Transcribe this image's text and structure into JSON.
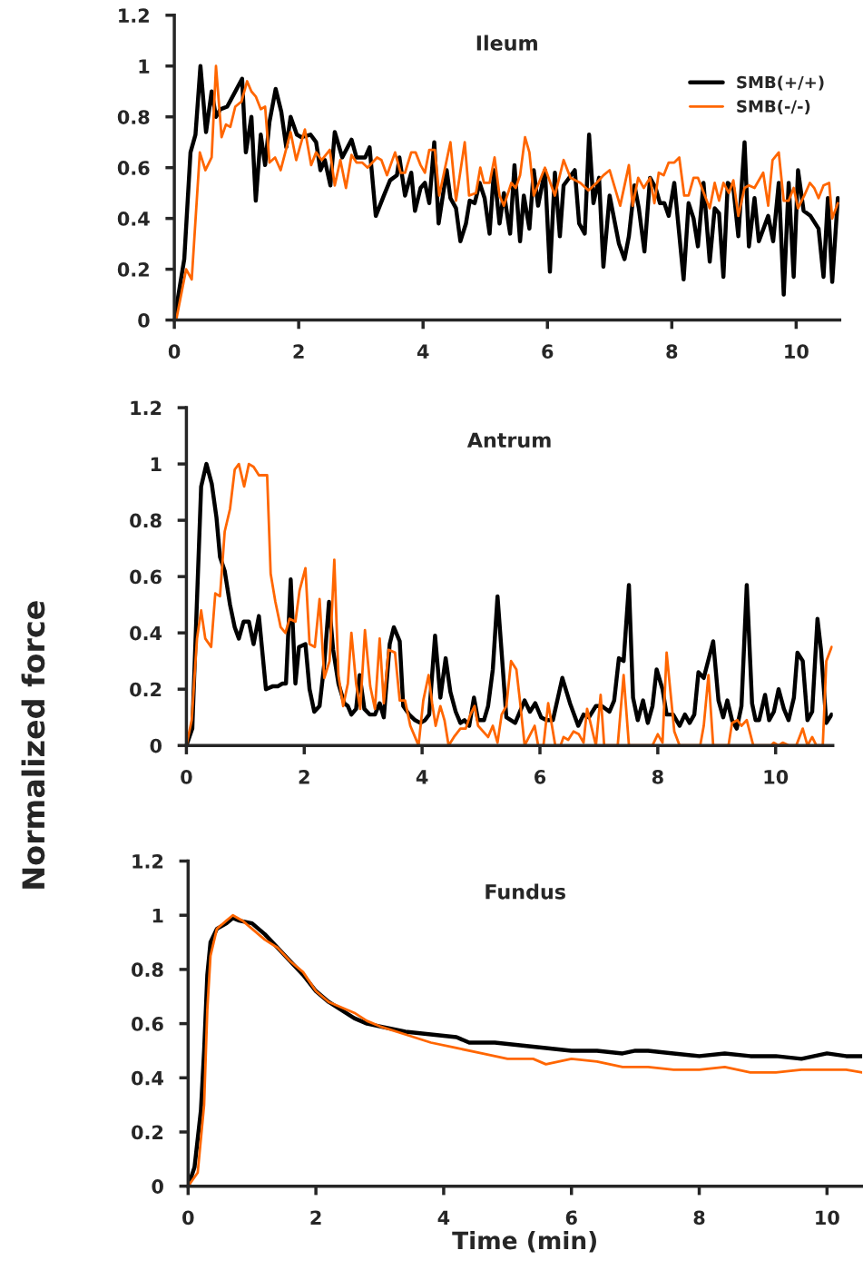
{
  "chart_data": [
    {
      "type": "line",
      "title": "Ileum",
      "xlim": [
        0,
        10.7
      ],
      "ylim": [
        0,
        1.2
      ],
      "xticks": [
        0,
        2,
        4,
        6,
        8,
        10
      ],
      "yticks": [
        0,
        0.2,
        0.4,
        0.6,
        0.8,
        1,
        1.2
      ],
      "legend": "top right",
      "series": [
        {
          "name": "SMB(+/+)",
          "color": "#000000",
          "x": [
            0,
            0.16,
            0.26,
            0.34,
            0.42,
            0.51,
            0.6,
            0.67,
            0.74,
            0.85,
            1.09,
            1.15,
            1.24,
            1.31,
            1.39,
            1.46,
            1.53,
            1.63,
            1.72,
            1.8,
            1.87,
            1.97,
            2.04,
            2.19,
            2.28,
            2.35,
            2.42,
            2.51,
            2.58,
            2.7,
            2.85,
            2.93,
            3.07,
            3.14,
            3.24,
            3.37,
            3.47,
            3.58,
            3.62,
            3.71,
            3.81,
            3.87,
            3.96,
            4.03,
            4.1,
            4.18,
            4.25,
            4.38,
            4.44,
            4.53,
            4.6,
            4.69,
            4.75,
            4.83,
            4.91,
            4.99,
            5.07,
            5.14,
            5.23,
            5.3,
            5.4,
            5.47,
            5.56,
            5.62,
            5.71,
            5.78,
            5.85,
            5.96,
            6.04,
            6.12,
            6.2,
            6.26,
            6.44,
            6.51,
            6.6,
            6.67,
            6.74,
            6.83,
            6.9,
            7.0,
            7.15,
            7.24,
            7.31,
            7.4,
            7.47,
            7.56,
            7.65,
            7.74,
            7.81,
            7.88,
            7.95,
            8.04,
            8.19,
            8.27,
            8.35,
            8.42,
            8.51,
            8.61,
            8.69,
            8.76,
            8.83,
            8.9,
            8.99,
            9.07,
            9.17,
            9.24,
            9.33,
            9.4,
            9.55,
            9.63,
            9.72,
            9.8,
            9.88,
            9.96,
            10.03,
            10.12,
            10.23,
            10.36,
            10.44,
            10.51,
            10.58,
            10.67
          ],
          "values": [
            0,
            0.24,
            0.66,
            0.73,
            1.0,
            0.74,
            0.9,
            0.8,
            0.83,
            0.84,
            0.95,
            0.66,
            0.8,
            0.47,
            0.73,
            0.61,
            0.78,
            0.91,
            0.82,
            0.68,
            0.8,
            0.73,
            0.72,
            0.73,
            0.7,
            0.59,
            0.63,
            0.53,
            0.74,
            0.64,
            0.71,
            0.64,
            0.64,
            0.68,
            0.41,
            0.49,
            0.55,
            0.57,
            0.64,
            0.49,
            0.58,
            0.43,
            0.52,
            0.54,
            0.46,
            0.7,
            0.38,
            0.59,
            0.48,
            0.44,
            0.31,
            0.38,
            0.47,
            0.46,
            0.54,
            0.48,
            0.34,
            0.59,
            0.38,
            0.5,
            0.34,
            0.61,
            0.31,
            0.49,
            0.36,
            0.59,
            0.45,
            0.59,
            0.19,
            0.58,
            0.33,
            0.53,
            0.59,
            0.38,
            0.34,
            0.73,
            0.46,
            0.56,
            0.21,
            0.49,
            0.3,
            0.24,
            0.33,
            0.53,
            0.44,
            0.27,
            0.56,
            0.52,
            0.46,
            0.46,
            0.41,
            0.54,
            0.16,
            0.46,
            0.4,
            0.29,
            0.54,
            0.23,
            0.44,
            0.42,
            0.17,
            0.54,
            0.52,
            0.33,
            0.7,
            0.29,
            0.48,
            0.31,
            0.41,
            0.31,
            0.54,
            0.1,
            0.54,
            0.17,
            0.59,
            0.43,
            0.41,
            0.36,
            0.17,
            0.48,
            0.15,
            0.48
          ]
        },
        {
          "name": "SMB(-/-)",
          "color": "#ff6600",
          "x": [
            0.03,
            0.19,
            0.28,
            0.41,
            0.5,
            0.6,
            0.67,
            0.76,
            0.83,
            0.9,
            0.98,
            1.08,
            1.17,
            1.24,
            1.31,
            1.39,
            1.46,
            1.53,
            1.62,
            1.71,
            1.87,
            1.96,
            2.1,
            2.2,
            2.28,
            2.37,
            2.5,
            2.58,
            2.67,
            2.76,
            2.85,
            2.93,
            3.02,
            3.11,
            3.26,
            3.33,
            3.42,
            3.55,
            3.64,
            3.71,
            3.81,
            3.88,
            3.96,
            4.03,
            4.1,
            4.19,
            4.26,
            4.44,
            4.53,
            4.67,
            4.74,
            4.85,
            4.92,
            4.98,
            5.07,
            5.15,
            5.23,
            5.3,
            5.42,
            5.49,
            5.56,
            5.64,
            5.71,
            5.78,
            5.96,
            6.12,
            6.26,
            6.37,
            6.53,
            6.66,
            6.79,
            6.9,
            7.0,
            7.17,
            7.31,
            7.37,
            7.46,
            7.55,
            7.65,
            7.72,
            7.79,
            7.87,
            7.95,
            8.04,
            8.12,
            8.2,
            8.27,
            8.35,
            8.42,
            8.61,
            8.69,
            8.76,
            8.83,
            8.92,
            8.99,
            9.07,
            9.17,
            9.24,
            9.33,
            9.47,
            9.55,
            9.62,
            9.72,
            9.8,
            9.88,
            9.96,
            10.03,
            10.13,
            10.22,
            10.29,
            10.36,
            10.44,
            10.53,
            10.58,
            10.67
          ],
          "values": [
            0,
            0.2,
            0.16,
            0.66,
            0.59,
            0.64,
            1.0,
            0.72,
            0.77,
            0.76,
            0.84,
            0.86,
            0.94,
            0.9,
            0.88,
            0.83,
            0.84,
            0.62,
            0.64,
            0.59,
            0.74,
            0.63,
            0.75,
            0.61,
            0.66,
            0.63,
            0.67,
            0.53,
            0.63,
            0.52,
            0.65,
            0.62,
            0.62,
            0.6,
            0.64,
            0.63,
            0.57,
            0.66,
            0.58,
            0.58,
            0.66,
            0.66,
            0.61,
            0.58,
            0.67,
            0.67,
            0.49,
            0.7,
            0.47,
            0.7,
            0.49,
            0.5,
            0.6,
            0.54,
            0.54,
            0.64,
            0.49,
            0.45,
            0.54,
            0.52,
            0.57,
            0.72,
            0.66,
            0.49,
            0.6,
            0.49,
            0.63,
            0.56,
            0.54,
            0.51,
            0.54,
            0.57,
            0.59,
            0.45,
            0.61,
            0.45,
            0.56,
            0.52,
            0.56,
            0.46,
            0.58,
            0.57,
            0.62,
            0.62,
            0.64,
            0.49,
            0.49,
            0.56,
            0.56,
            0.44,
            0.54,
            0.47,
            0.54,
            0.5,
            0.55,
            0.41,
            0.52,
            0.53,
            0.52,
            0.58,
            0.45,
            0.63,
            0.66,
            0.47,
            0.47,
            0.52,
            0.44,
            0.49,
            0.54,
            0.52,
            0.48,
            0.53,
            0.54,
            0.4,
            0.46
          ]
        }
      ]
    },
    {
      "type": "line",
      "title": "Antrum",
      "ylabel": "Normalized force",
      "xlim": [
        0,
        10.97
      ],
      "ylim": [
        0,
        1.2
      ],
      "xticks": [
        0,
        2,
        4,
        6,
        8,
        10
      ],
      "yticks": [
        0,
        0.2,
        0.4,
        0.6,
        0.8,
        1,
        1.2
      ],
      "series": [
        {
          "color": "#000000",
          "x": [
            0,
            0.1,
            0.25,
            0.34,
            0.43,
            0.51,
            0.57,
            0.65,
            0.74,
            0.82,
            0.89,
            0.97,
            1.06,
            1.14,
            1.23,
            1.35,
            1.46,
            1.55,
            1.63,
            1.69,
            1.77,
            1.85,
            1.91,
            2.02,
            2.09,
            2.17,
            2.26,
            2.34,
            2.42,
            2.49,
            2.58,
            2.68,
            2.74,
            2.8,
            2.88,
            2.94,
            3.02,
            3.11,
            3.2,
            3.28,
            3.35,
            3.45,
            3.52,
            3.62,
            3.68,
            3.78,
            3.88,
            3.97,
            4.05,
            4.12,
            4.22,
            4.31,
            4.4,
            4.48,
            4.57,
            4.65,
            4.72,
            4.8,
            4.88,
            4.95,
            5.05,
            5.12,
            5.2,
            5.28,
            5.35,
            5.43,
            5.58,
            5.74,
            5.83,
            5.92,
            6.02,
            6.11,
            6.22,
            6.38,
            6.51,
            6.65,
            6.74,
            6.83,
            6.95,
            7.05,
            7.18,
            7.26,
            7.34,
            7.42,
            7.51,
            7.58,
            7.66,
            7.75,
            7.83,
            7.91,
            7.98,
            8.08,
            8.15,
            8.26,
            8.37,
            8.46,
            8.54,
            8.62,
            8.69,
            8.78,
            8.94,
            9.03,
            9.11,
            9.18,
            9.26,
            9.34,
            9.42,
            9.51,
            9.6,
            9.66,
            9.72,
            9.82,
            9.89,
            9.97,
            10.05,
            10.14,
            10.22,
            10.31,
            10.37,
            10.46,
            10.54,
            10.62,
            10.71,
            10.77,
            10.86,
            10.95
          ],
          "values": [
            0,
            0.06,
            0.92,
            1.0,
            0.93,
            0.81,
            0.67,
            0.62,
            0.5,
            0.42,
            0.38,
            0.44,
            0.44,
            0.36,
            0.46,
            0.2,
            0.21,
            0.21,
            0.22,
            0.22,
            0.59,
            0.22,
            0.35,
            0.36,
            0.2,
            0.12,
            0.14,
            0.29,
            0.51,
            0.34,
            0.22,
            0.15,
            0.14,
            0.11,
            0.13,
            0.25,
            0.13,
            0.11,
            0.11,
            0.15,
            0.1,
            0.36,
            0.42,
            0.37,
            0.14,
            0.11,
            0.09,
            0.08,
            0.09,
            0.11,
            0.39,
            0.17,
            0.31,
            0.19,
            0.12,
            0.08,
            0.09,
            0.07,
            0.17,
            0.09,
            0.09,
            0.14,
            0.27,
            0.53,
            0.33,
            0.1,
            0.08,
            0.16,
            0.12,
            0.15,
            0.1,
            0.09,
            0.09,
            0.24,
            0.15,
            0.07,
            0.11,
            0.1,
            0.14,
            0.14,
            0.12,
            0.16,
            0.31,
            0.3,
            0.57,
            0.17,
            0.09,
            0.16,
            0.08,
            0.14,
            0.27,
            0.2,
            0.11,
            0.11,
            0.07,
            0.11,
            0.08,
            0.11,
            0.26,
            0.24,
            0.37,
            0.16,
            0.1,
            0.16,
            0.09,
            0.06,
            0.14,
            0.57,
            0.15,
            0.09,
            0.09,
            0.18,
            0.09,
            0.12,
            0.2,
            0.13,
            0.09,
            0.17,
            0.33,
            0.3,
            0.09,
            0.12,
            0.45,
            0.34,
            0.08,
            0.11
          ]
        },
        {
          "color": "#ff6600",
          "x": [
            0,
            0.09,
            0.18,
            0.25,
            0.32,
            0.42,
            0.49,
            0.57,
            0.65,
            0.74,
            0.82,
            0.89,
            0.98,
            1.06,
            1.14,
            1.23,
            1.37,
            1.43,
            1.51,
            1.6,
            1.68,
            1.75,
            1.85,
            1.92,
            2.02,
            2.09,
            2.18,
            2.26,
            2.34,
            2.43,
            2.51,
            2.58,
            2.66,
            2.74,
            2.8,
            2.88,
            2.95,
            3.03,
            3.12,
            3.2,
            3.28,
            3.35,
            3.43,
            3.54,
            3.62,
            3.71,
            3.8,
            3.88,
            3.94,
            4.02,
            4.11,
            4.17,
            4.23,
            4.31,
            4.38,
            4.45,
            4.54,
            4.65,
            4.74,
            4.82,
            4.89,
            4.95,
            5.12,
            5.2,
            5.28,
            5.35,
            5.43,
            5.51,
            5.6,
            5.66,
            5.74,
            5.91,
            5.97,
            6.06,
            6.14,
            6.26,
            6.35,
            6.4,
            6.48,
            6.57,
            6.66,
            6.74,
            6.8,
            6.95,
            7.03,
            7.09,
            7.32,
            7.42,
            7.51,
            7.91,
            8.0,
            8.08,
            8.15,
            8.28,
            8.37,
            8.72,
            8.78,
            8.86,
            8.94,
            9.2,
            9.26,
            9.35,
            9.42,
            9.51,
            9.62,
            9.92,
            9.97,
            10.05,
            10.12,
            10.23,
            10.35,
            10.46,
            10.54,
            10.62,
            10.69,
            10.8,
            10.86,
            10.95
          ],
          "values": [
            0,
            0.09,
            0.38,
            0.48,
            0.38,
            0.35,
            0.54,
            0.53,
            0.76,
            0.84,
            0.98,
            1.0,
            0.92,
            1.0,
            0.99,
            0.96,
            0.96,
            0.61,
            0.51,
            0.42,
            0.4,
            0.45,
            0.44,
            0.55,
            0.63,
            0.36,
            0.35,
            0.52,
            0.24,
            0.3,
            0.66,
            0.25,
            0.14,
            0.22,
            0.4,
            0.22,
            0.13,
            0.41,
            0.21,
            0.13,
            0.38,
            0.15,
            0.34,
            0.33,
            0.16,
            0.16,
            0.07,
            0.03,
            0,
            0.16,
            0.25,
            0.15,
            0.07,
            0.14,
            0.09,
            0,
            0.03,
            0.06,
            0.06,
            0.11,
            0.14,
            0.07,
            0.03,
            0.07,
            0.01,
            0.11,
            0.14,
            0.3,
            0.27,
            0.16,
            0,
            0.07,
            0,
            0,
            0.15,
            0,
            0,
            0.03,
            0.02,
            0.05,
            0.04,
            0.01,
            0.13,
            0,
            0.18,
            0,
            0,
            0.25,
            0,
            0,
            0.04,
            0.01,
            0.33,
            0.05,
            0,
            0,
            0.07,
            0.25,
            0,
            0,
            0.08,
            0.09,
            0.07,
            0.09,
            0,
            0,
            0.01,
            0,
            0.01,
            0,
            0,
            0.06,
            0,
            0.03,
            0,
            0,
            0.3,
            0.35
          ]
        }
      ]
    },
    {
      "type": "line",
      "title": "Fundus",
      "xlabel": "Time (min)",
      "xlim": [
        0,
        10.55
      ],
      "ylim": [
        0,
        1.2
      ],
      "xticks": [
        0,
        2,
        4,
        6,
        8,
        10
      ],
      "yticks": [
        0,
        0.2,
        0.4,
        0.6,
        0.8,
        1,
        1.2
      ],
      "series": [
        {
          "color": "#000000",
          "x": [
            0,
            0.1,
            0.2,
            0.25,
            0.3,
            0.35,
            0.45,
            0.6,
            0.7,
            0.8,
            1.0,
            1.2,
            1.4,
            1.6,
            1.8,
            2.0,
            2.2,
            2.4,
            2.6,
            2.8,
            3.0,
            3.4,
            3.8,
            4.2,
            4.4,
            4.8,
            5.2,
            5.6,
            6.0,
            6.4,
            6.8,
            7.0,
            7.2,
            7.6,
            8.0,
            8.4,
            8.8,
            9.2,
            9.6,
            10.0,
            10.3,
            10.55
          ],
          "values": [
            0,
            0.07,
            0.28,
            0.5,
            0.78,
            0.9,
            0.95,
            0.97,
            0.99,
            0.98,
            0.97,
            0.93,
            0.88,
            0.83,
            0.78,
            0.72,
            0.68,
            0.65,
            0.62,
            0.6,
            0.59,
            0.57,
            0.56,
            0.55,
            0.53,
            0.53,
            0.52,
            0.51,
            0.5,
            0.5,
            0.49,
            0.5,
            0.5,
            0.49,
            0.48,
            0.49,
            0.48,
            0.48,
            0.47,
            0.49,
            0.48,
            0.48
          ]
        },
        {
          "color": "#ff6600",
          "x": [
            0,
            0.15,
            0.25,
            0.3,
            0.35,
            0.45,
            0.6,
            0.7,
            0.85,
            1.0,
            1.2,
            1.4,
            1.6,
            1.8,
            2.0,
            2.2,
            2.4,
            2.6,
            2.8,
            3.0,
            3.4,
            3.8,
            4.2,
            4.6,
            5.0,
            5.4,
            5.6,
            6.0,
            6.4,
            6.8,
            7.2,
            7.6,
            8.0,
            8.4,
            8.8,
            9.2,
            9.6,
            10.0,
            10.3,
            10.55
          ],
          "values": [
            0,
            0.05,
            0.3,
            0.65,
            0.85,
            0.95,
            0.98,
            1.0,
            0.98,
            0.95,
            0.91,
            0.88,
            0.83,
            0.79,
            0.72,
            0.68,
            0.66,
            0.64,
            0.61,
            0.59,
            0.56,
            0.53,
            0.51,
            0.49,
            0.47,
            0.47,
            0.45,
            0.47,
            0.46,
            0.44,
            0.44,
            0.43,
            0.43,
            0.44,
            0.42,
            0.42,
            0.43,
            0.43,
            0.43,
            0.42
          ]
        }
      ]
    }
  ]
}
